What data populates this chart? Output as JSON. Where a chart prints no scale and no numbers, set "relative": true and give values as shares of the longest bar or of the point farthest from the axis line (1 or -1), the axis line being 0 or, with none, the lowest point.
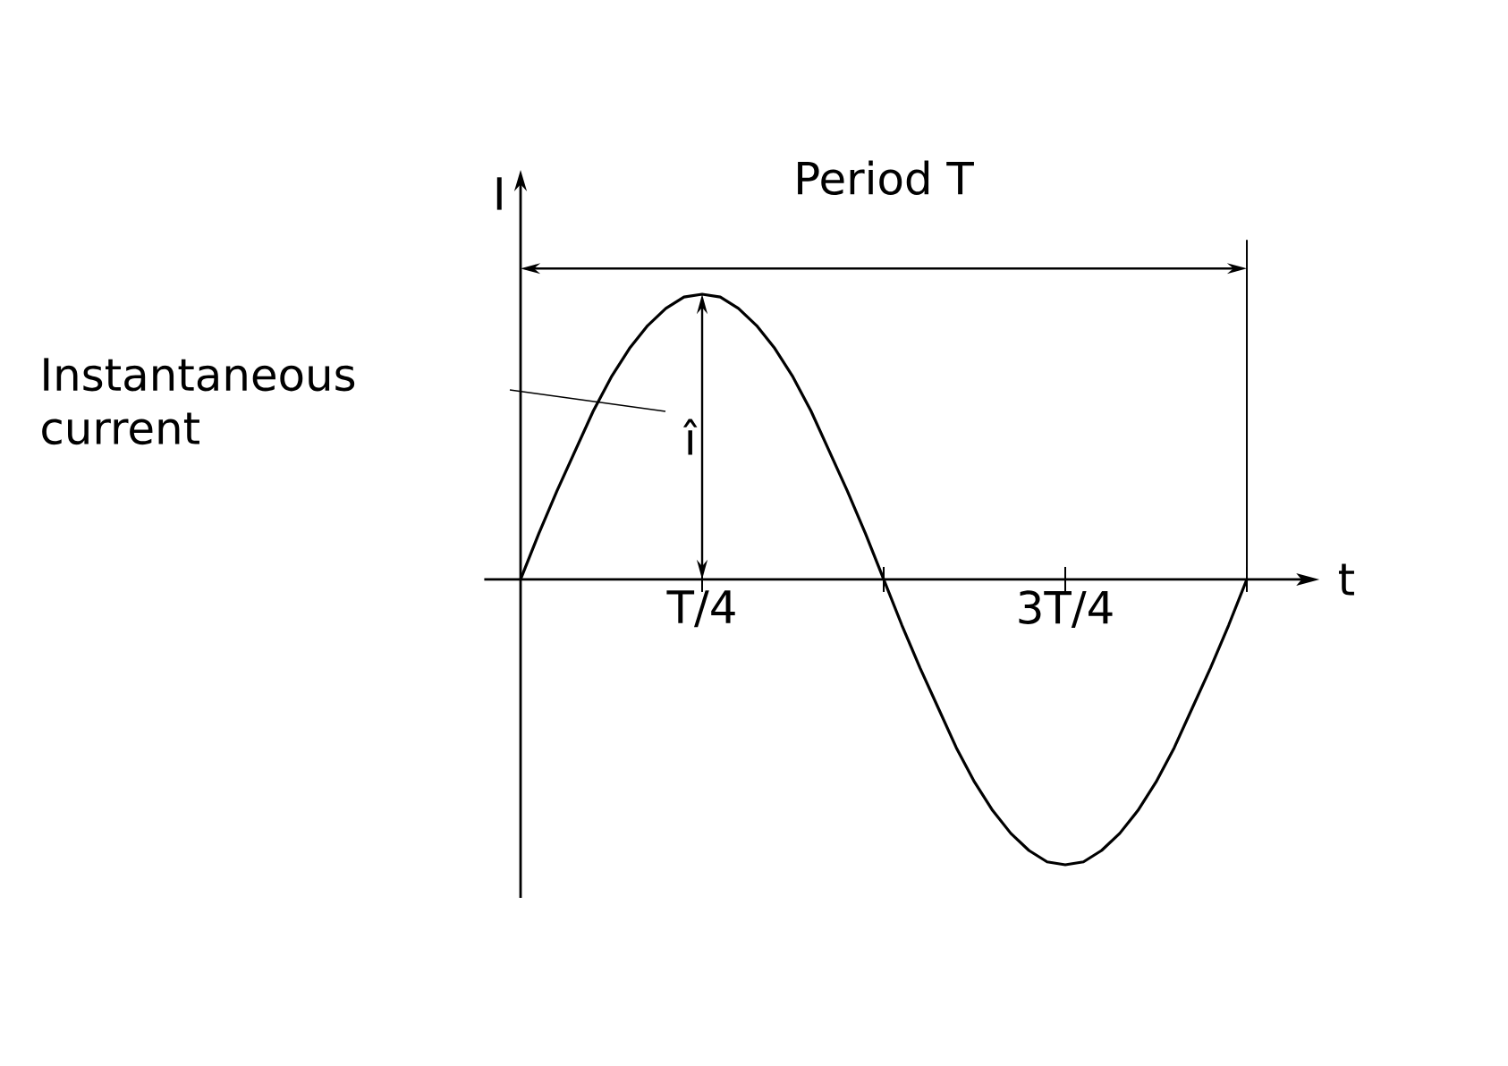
{
  "chart_data": {
    "type": "line",
    "relative": true,
    "title": "Period T",
    "xlabel": "t",
    "ylabel": "I",
    "categories": [
      null,
      null,
      null,
      null,
      null,
      null,
      null,
      null,
      null,
      null,
      "T/4",
      null,
      null,
      null,
      null,
      null,
      null,
      null,
      null,
      null,
      null,
      null,
      null,
      null,
      null,
      null,
      null,
      null,
      null,
      null,
      "3T/4",
      null,
      null,
      null,
      null,
      null,
      null,
      null,
      null,
      null,
      null
    ],
    "values": [
      0,
      0.16,
      0.31,
      0.45,
      0.59,
      0.71,
      0.81,
      0.89,
      0.95,
      0.99,
      1,
      0.99,
      0.95,
      0.89,
      0.81,
      0.71,
      0.59,
      0.45,
      0.31,
      0.16,
      0,
      -0.16,
      -0.31,
      -0.45,
      -0.59,
      -0.71,
      -0.81,
      -0.89,
      -0.95,
      -0.99,
      -1,
      -0.99,
      -0.95,
      -0.89,
      -0.81,
      -0.71,
      -0.59,
      -0.45,
      -0.31,
      -0.16,
      0
    ],
    "color": "#000000",
    "annotations": [
      "Instantaneous current",
      "î"
    ],
    "marker": "none",
    "line_style": "solid"
  }
}
